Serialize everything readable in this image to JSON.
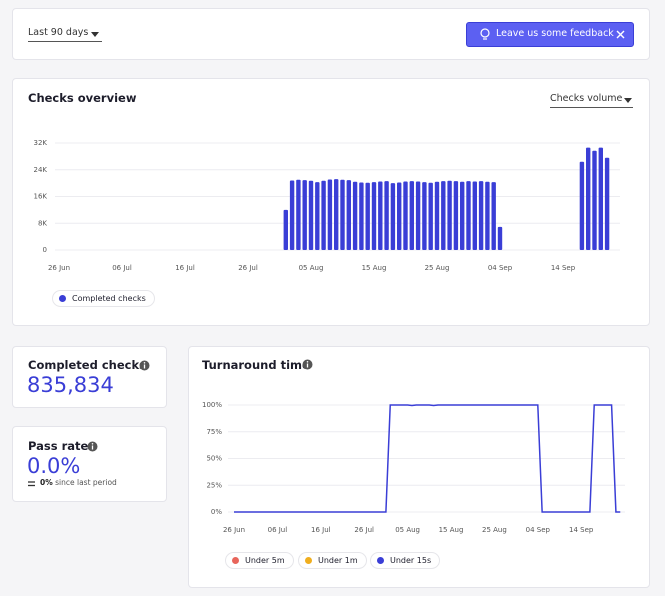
{
  "header": {
    "period": "Last 90 days",
    "feedback": "Leave us some feedback"
  },
  "overview": {
    "title": "Checks overview",
    "metric": "Checks volume"
  },
  "stats": [
    {
      "title": "Completed checks",
      "value": "835,834"
    },
    {
      "title": "Pass rate",
      "value": "0.0%",
      "change": "0%",
      "change_note": "since last period"
    }
  ],
  "turnaround": {
    "title": "Turnaround time"
  },
  "chart_data": [
    {
      "type": "bar",
      "categories": [
        "26 Jun",
        null,
        null,
        null,
        null,
        null,
        null,
        null,
        null,
        null,
        "06 Jul",
        null,
        null,
        null,
        null,
        null,
        null,
        null,
        null,
        null,
        "16 Jul",
        null,
        null,
        null,
        null,
        null,
        null,
        null,
        null,
        null,
        "26 Jul",
        null,
        null,
        null,
        null,
        null,
        null,
        null,
        null,
        null,
        "05 Aug",
        null,
        null,
        null,
        null,
        null,
        null,
        null,
        null,
        null,
        "15 Aug",
        null,
        null,
        null,
        null,
        null,
        null,
        null,
        null,
        null,
        "25 Aug",
        null,
        null,
        null,
        null,
        null,
        null,
        null,
        null,
        null,
        "04 Sep",
        null,
        null,
        null,
        null,
        null,
        null,
        null,
        null,
        null,
        "14 Sep",
        null,
        null,
        null,
        null,
        null,
        null,
        null,
        null,
        null
      ],
      "series": [
        {
          "name": "Completed checks",
          "color": "#3a3ed6",
          "values": [
            null,
            null,
            null,
            null,
            null,
            null,
            null,
            null,
            null,
            null,
            null,
            null,
            null,
            null,
            null,
            null,
            null,
            null,
            null,
            null,
            null,
            null,
            null,
            null,
            null,
            null,
            null,
            null,
            null,
            null,
            null,
            null,
            null,
            null,
            null,
            null,
            12000,
            20800,
            21000,
            20900,
            20700,
            20300,
            20700,
            21100,
            21200,
            21000,
            20900,
            20400,
            20200,
            20100,
            20300,
            20500,
            20600,
            20000,
            20200,
            20500,
            20600,
            20500,
            20300,
            20100,
            20400,
            20600,
            20700,
            20600,
            20400,
            20600,
            20500,
            20600,
            20400,
            20300,
            6900,
            null,
            null,
            null,
            null,
            null,
            null,
            null,
            null,
            null,
            null,
            null,
            null,
            26400,
            30600,
            29700,
            30600,
            27600,
            null,
            null
          ]
        }
      ],
      "ylim": [
        0,
        32000
      ],
      "yticks": [
        0,
        {
          "value": 8000,
          "label": "8K"
        },
        {
          "value": 16000,
          "label": "16K"
        },
        {
          "value": 24000,
          "label": "24K"
        },
        {
          "value": 32000,
          "label": "32K"
        }
      ],
      "grid": true
    },
    {
      "type": "line",
      "categories": [
        "26 Jun",
        null,
        null,
        null,
        null,
        null,
        null,
        null,
        null,
        null,
        "06 Jul",
        null,
        null,
        null,
        null,
        null,
        null,
        null,
        null,
        null,
        "16 Jul",
        null,
        null,
        null,
        null,
        null,
        null,
        null,
        null,
        null,
        "26 Jul",
        null,
        null,
        null,
        null,
        null,
        null,
        null,
        null,
        null,
        "05 Aug",
        null,
        null,
        null,
        null,
        null,
        null,
        null,
        null,
        null,
        "15 Aug",
        null,
        null,
        null,
        null,
        null,
        null,
        null,
        null,
        null,
        "25 Aug",
        null,
        null,
        null,
        null,
        null,
        null,
        null,
        null,
        null,
        "04 Sep",
        null,
        null,
        null,
        null,
        null,
        null,
        null,
        null,
        null,
        "14 Sep",
        null,
        null,
        null,
        null,
        null,
        null,
        null,
        null,
        null
      ],
      "series": [
        {
          "name": "Under 5m",
          "color": "#e8655b"
        },
        {
          "name": "Under 1m",
          "color": "#f0ae1e"
        },
        {
          "name": "Under 15s",
          "color": "#3a3ed6",
          "values": [
            0,
            0,
            0,
            0,
            0,
            0,
            0,
            0,
            0,
            0,
            0,
            0,
            0,
            0,
            0,
            0,
            0,
            0,
            0,
            0,
            0,
            0,
            0,
            0,
            0,
            0,
            0,
            0,
            0,
            0,
            0,
            0,
            0,
            0,
            0,
            0,
            100,
            100,
            100,
            100,
            100,
            99.5,
            100,
            100,
            100,
            100,
            99.5,
            100,
            100,
            100,
            100,
            100,
            100,
            100,
            100,
            100,
            100,
            100,
            100,
            100,
            100,
            100,
            100,
            100,
            100,
            100,
            100,
            100,
            100,
            100,
            100,
            0,
            0,
            0,
            0,
            0,
            0,
            0,
            0,
            0,
            0,
            0,
            0,
            100,
            100,
            100,
            100,
            100,
            0,
            0
          ]
        }
      ],
      "ylim": [
        0,
        100
      ],
      "yticks": [
        {
          "value": 0,
          "label": "0%"
        },
        {
          "value": 25,
          "label": "25%"
        },
        {
          "value": 50,
          "label": "50%"
        },
        {
          "value": 75,
          "label": "75%"
        },
        {
          "value": 100,
          "label": "100%"
        }
      ],
      "grid": true
    }
  ]
}
